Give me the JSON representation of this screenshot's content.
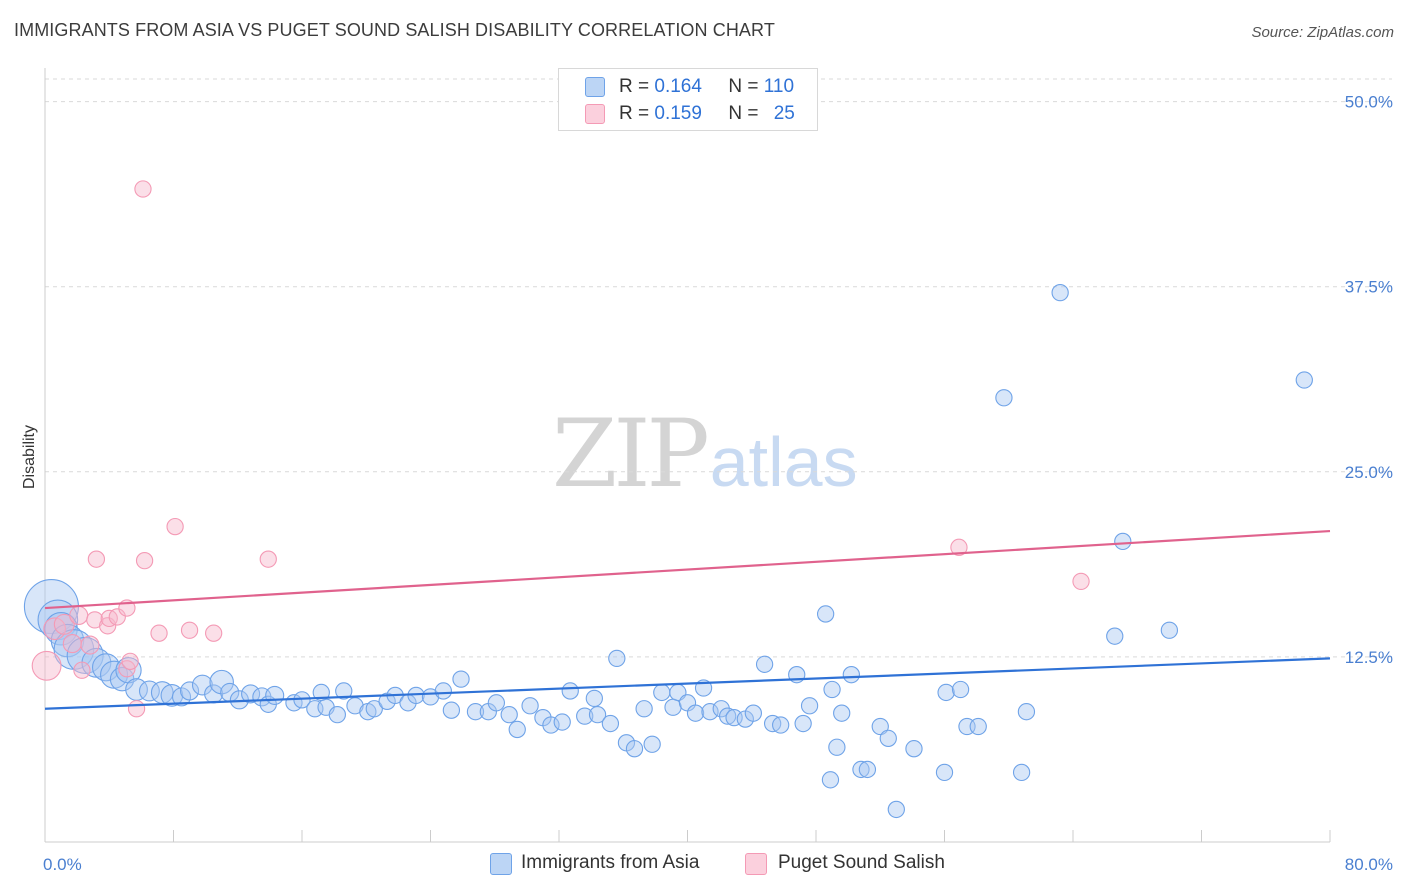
{
  "title": "IMMIGRANTS FROM ASIA VS PUGET SOUND SALISH DISABILITY CORRELATION CHART",
  "source": "Source: ZipAtlas.com",
  "watermark": {
    "zip": "ZIP",
    "atlas": "atlas"
  },
  "legend": {
    "rows": [
      {
        "r_label": "R =",
        "r_value": "0.164",
        "n_label": "N =",
        "n_value": "110",
        "color": "#a9c8f2"
      },
      {
        "r_label": "R =",
        "r_value": "0.159",
        "n_label": "N =",
        "n_value": "25",
        "color": "#f7b9cc"
      }
    ]
  },
  "bottom_legend": [
    {
      "label": "Immigrants from Asia",
      "color": "#a9c8f2"
    },
    {
      "label": "Puget Sound Salish",
      "color": "#f7b9cc"
    }
  ],
  "chart_data": {
    "type": "scatter",
    "title": "IMMIGRANTS FROM ASIA VS PUGET SOUND SALISH DISABILITY CORRELATION CHART",
    "xlabel": "",
    "ylabel": "Disability",
    "xlim": [
      0,
      80
    ],
    "ylim": [
      0,
      52
    ],
    "x_tick_labels": [
      "0.0%",
      "80.0%"
    ],
    "y_ticks": [
      12.5,
      25.0,
      37.5,
      50.0
    ],
    "y_tick_labels": [
      "12.5%",
      "25.0%",
      "37.5%",
      "50.0%"
    ],
    "grid": "horizontal dashed",
    "legend_position": "top-center",
    "series": [
      {
        "name": "Immigrants from Asia",
        "color": "#6fa3e8",
        "trend": {
          "x": [
            0,
            80
          ],
          "y": [
            9.0,
            12.4
          ],
          "color": "#2f72d6"
        },
        "points": [
          [
            0.4,
            15.9,
            3.0
          ],
          [
            0.8,
            15.0,
            2.2
          ],
          [
            1.0,
            14.4,
            1.8
          ],
          [
            1.4,
            13.6,
            1.8
          ],
          [
            1.8,
            13.0,
            2.2
          ],
          [
            2.5,
            12.6,
            2.0
          ],
          [
            3.2,
            12.1,
            1.6
          ],
          [
            3.8,
            11.8,
            1.5
          ],
          [
            4.3,
            11.3,
            1.5
          ],
          [
            4.8,
            11.0,
            1.3
          ],
          [
            5.2,
            11.6,
            1.4
          ],
          [
            5.7,
            10.3,
            1.2
          ],
          [
            6.5,
            10.2,
            1.1
          ],
          [
            7.3,
            10.1,
            1.2
          ],
          [
            7.9,
            9.9,
            1.2
          ],
          [
            8.5,
            9.8,
            1.0
          ],
          [
            9.0,
            10.2,
            1.0
          ],
          [
            9.8,
            10.6,
            1.1
          ],
          [
            10.5,
            10.0,
            1.0
          ],
          [
            11.0,
            10.8,
            1.3
          ],
          [
            11.5,
            10.1,
            1.0
          ],
          [
            12.1,
            9.6,
            1.0
          ],
          [
            12.8,
            10.0,
            1.0
          ],
          [
            13.5,
            9.8,
            1.0
          ],
          [
            13.9,
            9.3,
            0.9
          ],
          [
            14.3,
            9.9,
            1.0
          ],
          [
            15.5,
            9.4,
            0.9
          ],
          [
            16.0,
            9.6,
            0.9
          ],
          [
            16.8,
            9.0,
            0.9
          ],
          [
            17.5,
            9.1,
            0.9
          ],
          [
            17.2,
            10.1,
            0.9
          ],
          [
            18.2,
            8.6,
            0.9
          ],
          [
            18.6,
            10.2,
            0.9
          ],
          [
            19.3,
            9.2,
            0.9
          ],
          [
            20.1,
            8.8,
            0.9
          ],
          [
            20.5,
            9.0,
            0.9
          ],
          [
            21.3,
            9.5,
            0.9
          ],
          [
            21.8,
            9.9,
            0.9
          ],
          [
            22.6,
            9.4,
            0.9
          ],
          [
            23.1,
            9.9,
            0.9
          ],
          [
            24.0,
            9.8,
            0.9
          ],
          [
            24.8,
            10.2,
            0.9
          ],
          [
            25.3,
            8.9,
            0.9
          ],
          [
            25.9,
            11.0,
            0.9
          ],
          [
            26.8,
            8.8,
            0.9
          ],
          [
            27.6,
            8.8,
            0.9
          ],
          [
            28.1,
            9.4,
            0.9
          ],
          [
            28.9,
            8.6,
            0.9
          ],
          [
            29.4,
            7.6,
            0.9
          ],
          [
            30.2,
            9.2,
            0.9
          ],
          [
            31.0,
            8.4,
            0.9
          ],
          [
            31.5,
            7.9,
            0.9
          ],
          [
            32.2,
            8.1,
            0.9
          ],
          [
            32.7,
            10.2,
            0.9
          ],
          [
            33.6,
            8.5,
            0.9
          ],
          [
            34.4,
            8.6,
            0.9
          ],
          [
            34.2,
            9.7,
            0.9
          ],
          [
            35.2,
            8.0,
            0.9
          ],
          [
            35.6,
            12.4,
            0.9
          ],
          [
            36.2,
            6.7,
            0.9
          ],
          [
            36.7,
            6.3,
            0.9
          ],
          [
            37.3,
            9.0,
            0.9
          ],
          [
            37.8,
            6.6,
            0.9
          ],
          [
            38.4,
            10.1,
            0.9
          ],
          [
            39.1,
            9.1,
            0.9
          ],
          [
            39.4,
            10.1,
            0.9
          ],
          [
            40.0,
            9.4,
            0.9
          ],
          [
            40.5,
            8.7,
            0.9
          ],
          [
            41.0,
            10.4,
            0.9
          ],
          [
            41.4,
            8.8,
            0.9
          ],
          [
            42.1,
            9.0,
            0.9
          ],
          [
            42.5,
            8.5,
            0.9
          ],
          [
            42.9,
            8.4,
            0.9
          ],
          [
            43.6,
            8.3,
            0.9
          ],
          [
            44.1,
            8.7,
            0.9
          ],
          [
            44.8,
            12.0,
            0.9
          ],
          [
            45.3,
            8.0,
            0.9
          ],
          [
            45.8,
            7.9,
            0.9
          ],
          [
            46.8,
            11.3,
            0.9
          ],
          [
            47.2,
            8.0,
            0.9
          ],
          [
            47.6,
            9.2,
            0.9
          ],
          [
            48.6,
            15.4,
            0.9
          ],
          [
            49.0,
            10.3,
            0.9
          ],
          [
            49.3,
            6.4,
            0.9
          ],
          [
            49.6,
            8.7,
            0.9
          ],
          [
            48.9,
            4.2,
            0.9
          ],
          [
            50.2,
            11.3,
            0.9
          ],
          [
            50.8,
            4.9,
            0.9
          ],
          [
            51.2,
            4.9,
            0.9
          ],
          [
            52.0,
            7.8,
            0.9
          ],
          [
            52.5,
            7.0,
            0.9
          ],
          [
            53.0,
            2.2,
            0.9
          ],
          [
            54.1,
            6.3,
            0.9
          ],
          [
            56.0,
            4.7,
            0.9
          ],
          [
            56.1,
            10.1,
            0.9
          ],
          [
            57.0,
            10.3,
            0.9
          ],
          [
            57.4,
            7.8,
            0.9
          ],
          [
            58.1,
            7.8,
            0.9
          ],
          [
            59.7,
            30.0,
            0.9
          ],
          [
            60.8,
            4.7,
            0.9
          ],
          [
            61.1,
            8.8,
            0.9
          ],
          [
            63.2,
            37.1,
            0.9
          ],
          [
            66.6,
            13.9,
            0.9
          ],
          [
            67.1,
            20.3,
            0.9
          ],
          [
            70.0,
            14.3,
            0.9
          ],
          [
            78.4,
            31.2,
            0.9
          ]
        ]
      },
      {
        "name": "Puget Sound Salish",
        "color": "#f49ab5",
        "trend": {
          "x": [
            0,
            80
          ],
          "y": [
            15.8,
            21.0
          ],
          "color": "#e0628d"
        },
        "points": [
          [
            0.1,
            11.9,
            1.6
          ],
          [
            0.6,
            14.4,
            1.2
          ],
          [
            1.2,
            14.7,
            1.1
          ],
          [
            1.7,
            13.4,
            1.0
          ],
          [
            2.1,
            15.3,
            1.0
          ],
          [
            2.3,
            11.6,
            0.9
          ],
          [
            2.8,
            13.3,
            1.0
          ],
          [
            3.1,
            15.0,
            0.9
          ],
          [
            3.2,
            19.1,
            0.9
          ],
          [
            3.9,
            14.6,
            0.9
          ],
          [
            4.0,
            15.1,
            0.9
          ],
          [
            4.5,
            15.2,
            0.9
          ],
          [
            5.1,
            11.7,
            0.9
          ],
          [
            5.1,
            15.8,
            0.9
          ],
          [
            5.3,
            12.2,
            0.9
          ],
          [
            5.7,
            9.0,
            0.9
          ],
          [
            6.1,
            44.1,
            0.9
          ],
          [
            6.2,
            19.0,
            0.9
          ],
          [
            7.1,
            14.1,
            0.9
          ],
          [
            8.1,
            21.3,
            0.9
          ],
          [
            9.0,
            14.3,
            0.9
          ],
          [
            10.5,
            14.1,
            0.9
          ],
          [
            13.9,
            19.1,
            0.9
          ],
          [
            56.9,
            19.9,
            0.9
          ],
          [
            64.5,
            17.6,
            0.9
          ]
        ]
      }
    ]
  }
}
